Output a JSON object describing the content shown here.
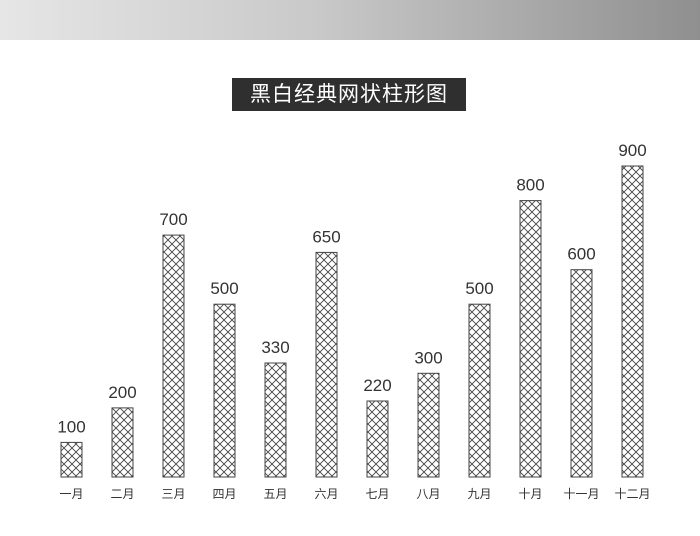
{
  "chart_data": {
    "type": "bar",
    "title": "黑白经典网状柱形图",
    "categories": [
      "一月",
      "二月",
      "三月",
      "四月",
      "五月",
      "六月",
      "七月",
      "八月",
      "九月",
      "十月",
      "十一月",
      "十二月"
    ],
    "values": [
      100,
      200,
      700,
      500,
      330,
      650,
      220,
      300,
      500,
      800,
      600,
      900
    ],
    "xlabel": "",
    "ylabel": "",
    "ylim": [
      0,
      900
    ],
    "grid": false,
    "bar_fill": "crosshatch",
    "bar_color": "#ffffff",
    "line_color": "#444444",
    "title_bg": "#2f2f2f",
    "title_color": "#ffffff"
  }
}
